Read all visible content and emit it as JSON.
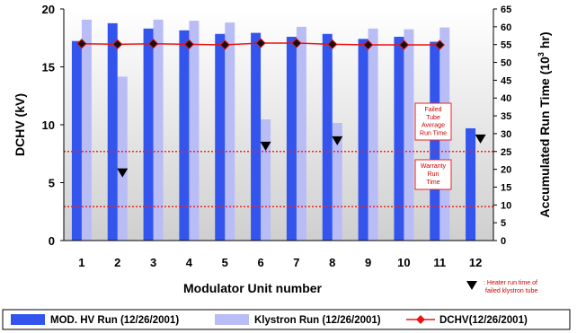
{
  "colors": {
    "hv_bar": "#3355ee",
    "klystron_bar": "#b9bdf6",
    "dchv_line": "#ee1111",
    "dchv_marker": "#111111",
    "threshold": "#ee2222",
    "heater_marker": "#000000",
    "plot_bg_top": "#ffffff",
    "plot_bg_bottom": "#cfcfcf"
  },
  "chart_data": {
    "type": "bar",
    "xlabel": "Modulator Unit number",
    "ylabel_left": "DCHV (kV)",
    "ylabel_right_prefix": "Accumulated Run Time (10",
    "ylabel_right_sup": "3",
    "ylabel_right_suffix": " hr)",
    "categories": [
      "1",
      "2",
      "3",
      "4",
      "5",
      "6",
      "7",
      "8",
      "9",
      "10",
      "11",
      "12"
    ],
    "ylim_left": [
      0,
      20
    ],
    "yticks_left": [
      "0",
      "5",
      "10",
      "15",
      "20"
    ],
    "ylim_right": [
      0,
      65
    ],
    "yticks_right": [
      "0",
      "5",
      "10",
      "15",
      "20",
      "25",
      "30",
      "35",
      "40",
      "45",
      "50",
      "55",
      "60",
      "65"
    ],
    "series": [
      {
        "name": "MOD. HV Run (12/26/2001)",
        "axis": "right",
        "type": "bar",
        "values": [
          56,
          61,
          59.5,
          59,
          58,
          58.3,
          57.2,
          58,
          56.6,
          57.2,
          55.8,
          31.5
        ]
      },
      {
        "name": "Klystron Run (12/26/2001)",
        "axis": "right",
        "type": "bar",
        "values": [
          62,
          46,
          62,
          61.7,
          61.2,
          34,
          60,
          33,
          59.5,
          59.3,
          59.8,
          null
        ]
      },
      {
        "name": "DCHV(12/26/2001)",
        "axis": "left",
        "type": "line",
        "values": [
          17.0,
          16.95,
          17.0,
          16.95,
          16.9,
          17.05,
          17.05,
          16.95,
          16.9,
          16.9,
          16.9,
          null
        ]
      }
    ],
    "heater_run_time": {
      "axis": "right",
      "values": [
        null,
        19,
        null,
        null,
        null,
        26.5,
        null,
        28,
        null,
        null,
        null,
        28.5
      ]
    },
    "reference_lines": [
      {
        "axis": "right",
        "value": 25,
        "label_lines": [
          "Failed",
          "Tube",
          "Average",
          "Run Time"
        ]
      },
      {
        "axis": "right",
        "value": 9.5,
        "label_lines": [
          "Warranty",
          "Run",
          "Time"
        ]
      }
    ],
    "heater_note_lines": [
      ": Heater run time of",
      "failed klystron tube"
    ],
    "grid": false,
    "legend_position": "bottom"
  }
}
